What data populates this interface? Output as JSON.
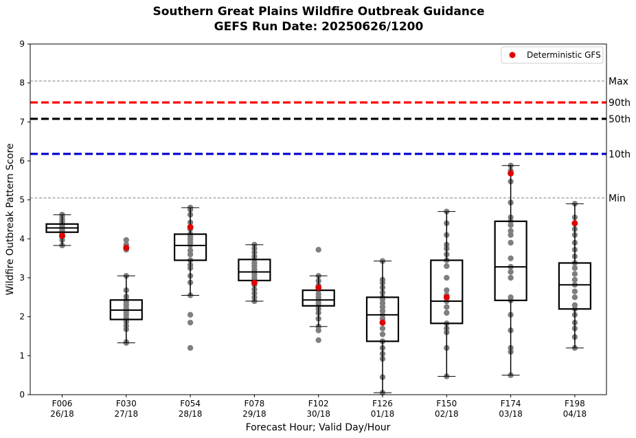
{
  "chart_data": {
    "type": "box",
    "title": "Southern Great Plains Wildfire Outbreak Guidance",
    "subtitle": "GEFS Run Date: 20250626/1200",
    "xlabel": "Forecast Hour; Valid Day/Hour",
    "ylabel": "Wildfire Outbreak Pattern Score",
    "ylim": [
      0,
      9
    ],
    "yticks": [
      "0",
      "1",
      "2",
      "3",
      "4",
      "5",
      "6",
      "7",
      "8",
      "9"
    ],
    "grid": false,
    "legend": {
      "position": "top-right",
      "entries": [
        {
          "label": "Deterministic GFS",
          "color": "#e00000"
        }
      ]
    },
    "reference_lines": [
      {
        "label": "Max",
        "value": 8.05,
        "color": "#808080",
        "style": "dashed-thin"
      },
      {
        "label": "90th",
        "value": 7.5,
        "color": "#ff0000",
        "style": "dashed-thick"
      },
      {
        "label": "50th",
        "value": 7.08,
        "color": "#000000",
        "style": "dashed-thick"
      },
      {
        "label": "10th",
        "value": 6.18,
        "color": "#0000cc",
        "style": "dashed-thick"
      },
      {
        "label": "Min",
        "value": 5.05,
        "color": "#808080",
        "style": "dashed-thin"
      }
    ],
    "categories": [
      {
        "hour": "F006",
        "valid": "26/18",
        "whisker_low": 3.83,
        "q1": 4.17,
        "median": 4.28,
        "q3": 4.38,
        "whisker_high": 4.62,
        "deterministic": 4.08,
        "members": [
          3.83,
          3.97,
          4.05,
          4.12,
          4.17,
          4.2,
          4.22,
          4.25,
          4.27,
          4.28,
          4.3,
          4.32,
          4.35,
          4.38,
          4.42,
          4.47,
          4.52,
          4.58,
          4.62
        ]
      },
      {
        "hour": "F030",
        "valid": "27/18",
        "whisker_low": 1.33,
        "q1": 1.93,
        "median": 2.17,
        "q3": 2.43,
        "whisker_high": 3.05,
        "deterministic": 3.77,
        "members": [
          1.33,
          1.35,
          1.68,
          1.77,
          1.87,
          1.93,
          1.97,
          2.05,
          2.12,
          2.17,
          2.22,
          2.3,
          2.37,
          2.43,
          2.52,
          2.68,
          3.05,
          3.72,
          3.85,
          3.97
        ]
      },
      {
        "hour": "F054",
        "valid": "28/18",
        "whisker_low": 2.55,
        "q1": 3.45,
        "median": 3.83,
        "q3": 4.12,
        "whisker_high": 4.8,
        "deterministic": 4.3,
        "members": [
          1.2,
          1.85,
          2.05,
          2.55,
          2.88,
          3.05,
          3.25,
          3.33,
          3.45,
          3.6,
          3.7,
          3.83,
          3.9,
          3.98,
          4.05,
          4.12,
          4.25,
          4.42,
          4.62,
          4.75,
          4.8
        ]
      },
      {
        "hour": "F078",
        "valid": "29/18",
        "whisker_low": 2.4,
        "q1": 2.93,
        "median": 3.15,
        "q3": 3.47,
        "whisker_high": 3.85,
        "deterministic": 2.87,
        "members": [
          2.4,
          2.5,
          2.6,
          2.7,
          2.82,
          2.93,
          3.0,
          3.08,
          3.15,
          3.22,
          3.3,
          3.38,
          3.47,
          3.55,
          3.65,
          3.75,
          3.85
        ]
      },
      {
        "hour": "F102",
        "valid": "30/18",
        "whisker_low": 1.75,
        "q1": 2.28,
        "median": 2.43,
        "q3": 2.68,
        "whisker_high": 3.05,
        "deterministic": 2.75,
        "members": [
          1.4,
          1.65,
          1.75,
          1.95,
          2.1,
          2.2,
          2.28,
          2.35,
          2.43,
          2.5,
          2.58,
          2.68,
          2.8,
          2.92,
          3.05,
          3.72
        ]
      },
      {
        "hour": "F126",
        "valid": "01/18",
        "whisker_low": 0.05,
        "q1": 1.37,
        "median": 2.05,
        "q3": 2.5,
        "whisker_high": 3.43,
        "deterministic": 1.85,
        "members": [
          0.05,
          0.45,
          0.92,
          1.05,
          1.2,
          1.37,
          1.55,
          1.7,
          1.85,
          1.95,
          2.05,
          2.15,
          2.25,
          2.35,
          2.45,
          2.5,
          2.62,
          2.75,
          2.87,
          2.95,
          3.43
        ]
      },
      {
        "hour": "F150",
        "valid": "02/18",
        "whisker_low": 0.47,
        "q1": 1.83,
        "median": 2.4,
        "q3": 3.45,
        "whisker_high": 4.7,
        "deterministic": 2.5,
        "members": [
          0.47,
          1.2,
          1.6,
          1.7,
          1.83,
          2.1,
          2.25,
          2.4,
          2.55,
          2.68,
          3.0,
          3.3,
          3.45,
          3.6,
          3.75,
          3.85,
          4.1,
          4.4,
          4.7
        ]
      },
      {
        "hour": "F174",
        "valid": "03/18",
        "whisker_low": 0.5,
        "q1": 2.42,
        "median": 3.28,
        "q3": 4.45,
        "whisker_high": 5.88,
        "deterministic": 5.68,
        "members": [
          0.5,
          1.1,
          1.2,
          1.65,
          2.05,
          2.42,
          2.5,
          3.0,
          3.15,
          3.28,
          3.5,
          3.9,
          4.1,
          4.2,
          4.35,
          4.45,
          4.55,
          4.93,
          5.47,
          5.75,
          5.88
        ]
      },
      {
        "hour": "F198",
        "valid": "04/18",
        "whisker_low": 1.2,
        "q1": 2.2,
        "median": 2.82,
        "q3": 3.38,
        "whisker_high": 4.9,
        "deterministic": 4.4,
        "members": [
          1.2,
          1.48,
          1.7,
          1.85,
          2.05,
          2.2,
          2.3,
          2.5,
          2.65,
          2.82,
          2.95,
          3.1,
          3.25,
          3.38,
          3.55,
          3.72,
          3.9,
          4.1,
          4.25,
          4.55,
          4.9
        ]
      }
    ]
  }
}
